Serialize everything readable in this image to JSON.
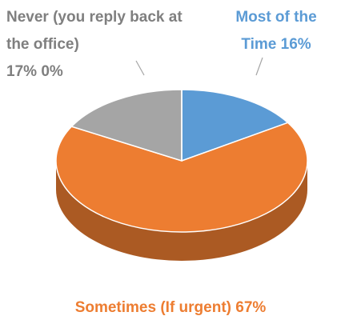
{
  "chart_data": {
    "type": "pie3d",
    "categories": [
      "Most of the Time",
      "Sometimes (If urgent)",
      "Never (you reply back at the office)",
      null
    ],
    "values": [
      16,
      67,
      17,
      0
    ],
    "value_labels": [
      "16%",
      "67%",
      "17%",
      "0%"
    ],
    "colors": [
      "#5b9bd5",
      "#ed7d31",
      "#a5a5a5",
      null
    ]
  }
}
